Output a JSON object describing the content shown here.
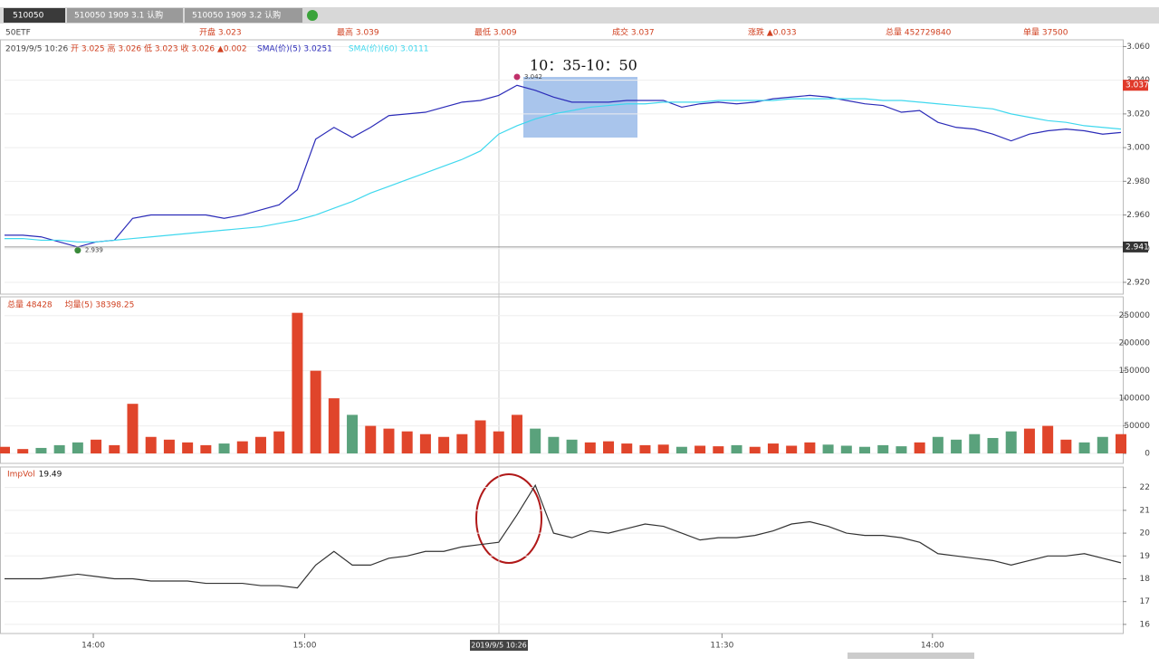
{
  "tabs": [
    "510050",
    "510050 1909 3.1 认购",
    "510050 1909 3.2 认购"
  ],
  "quote_bar": {
    "symbol": "50ETF",
    "open": "开盘 3.023",
    "high": "最高 3.039",
    "low": "最低 3.009",
    "last": "成交 3.037",
    "change": "涨跌 ▲0.033",
    "total": "总量 452729840",
    "lot": "单量 37500"
  },
  "chart_data": [
    {
      "type": "line",
      "subtitle": "2019/9/5 10:26",
      "ohlc_label": "开 3.025 高 3.026 低 3.023 收 3.026 ▲0.002",
      "annotation": "10：35-10：50",
      "high_marker": 3.042,
      "low_marker": 2.939,
      "last_price": 3.037,
      "cursor_price": 2.941,
      "ylim": [
        2.913,
        3.064
      ],
      "yticks": [
        {
          "value": 2.92,
          "label": "2.920"
        },
        {
          "value": 2.94,
          "label": "2.940"
        },
        {
          "value": 2.96,
          "label": "2.960"
        },
        {
          "value": 2.98,
          "label": "2.980"
        },
        {
          "value": 3.0,
          "label": "3.000"
        },
        {
          "value": 3.02,
          "label": "3.020"
        },
        {
          "value": 3.04,
          "label": "3.040"
        },
        {
          "value": 3.06,
          "label": "3.060"
        }
      ],
      "series": [
        {
          "name": "SMA(价)(5)",
          "current": 3.0251,
          "color": "#2b2bb8",
          "values": [
            2.948,
            2.948,
            2.947,
            2.944,
            2.941,
            2.944,
            2.945,
            2.958,
            2.96,
            2.96,
            2.96,
            2.96,
            2.958,
            2.96,
            2.963,
            2.966,
            2.975,
            3.005,
            3.012,
            3.006,
            3.012,
            3.019,
            3.02,
            3.021,
            3.024,
            3.027,
            3.028,
            3.031,
            3.037,
            3.034,
            3.03,
            3.027,
            3.027,
            3.027,
            3.028,
            3.028,
            3.028,
            3.024,
            3.026,
            3.027,
            3.026,
            3.027,
            3.029,
            3.03,
            3.031,
            3.03,
            3.028,
            3.026,
            3.025,
            3.021,
            3.022,
            3.015,
            3.012,
            3.011,
            3.008,
            3.004,
            3.008,
            3.01,
            3.011,
            3.01,
            3.008,
            3.009
          ]
        },
        {
          "name": "SMA(价)(60)",
          "current": 3.0111,
          "color": "#3fd8ee",
          "values": [
            2.946,
            2.946,
            2.945,
            2.945,
            2.944,
            2.944,
            2.945,
            2.946,
            2.947,
            2.948,
            2.949,
            2.95,
            2.951,
            2.952,
            2.953,
            2.955,
            2.957,
            2.96,
            2.964,
            2.968,
            2.973,
            2.977,
            2.981,
            2.985,
            2.989,
            2.993,
            2.998,
            3.008,
            3.013,
            3.017,
            3.02,
            3.022,
            3.024,
            3.025,
            3.026,
            3.026,
            3.027,
            3.027,
            3.027,
            3.028,
            3.028,
            3.028,
            3.028,
            3.029,
            3.029,
            3.029,
            3.029,
            3.029,
            3.028,
            3.028,
            3.027,
            3.026,
            3.025,
            3.024,
            3.023,
            3.02,
            3.018,
            3.016,
            3.015,
            3.013,
            3.012,
            3.011
          ]
        }
      ]
    },
    {
      "type": "bar",
      "total_label": "总量",
      "total": 48428,
      "avg_label": "均量(5)",
      "avg": 38398.25,
      "up_color": "#e0452b",
      "down_color": "#5aa27c",
      "ylim": [
        -18000,
        284000
      ],
      "yticks": [
        0,
        50000,
        100000,
        150000,
        200000,
        250000
      ],
      "values": [
        12000,
        8000,
        10000,
        15000,
        20000,
        25000,
        15000,
        90000,
        30000,
        25000,
        20000,
        15000,
        18000,
        22000,
        30000,
        40000,
        255000,
        150000,
        100000,
        70000,
        50000,
        45000,
        40000,
        35000,
        30000,
        35000,
        60000,
        40000,
        70000,
        45000,
        30000,
        25000,
        20000,
        22000,
        18000,
        15000,
        16000,
        12000,
        14000,
        13000,
        15000,
        12000,
        18000,
        14000,
        20000,
        16000,
        14000,
        12000,
        15000,
        13000,
        20000,
        30000,
        25000,
        35000,
        28000,
        40000,
        45000,
        50000,
        25000,
        20000,
        30000,
        35000
      ]
    },
    {
      "type": "line",
      "title": "ImpVol",
      "current": 19.49,
      "color": "#333333",
      "ylim": [
        15.6,
        22.9
      ],
      "yticks": [
        16,
        17,
        18,
        19,
        20,
        21,
        22
      ],
      "xlim": [
        0,
        61
      ],
      "cursor_label": "2019/9/5 10:26",
      "xticks": [
        {
          "value": 4.85,
          "label": "14:00"
        },
        {
          "value": 16.4,
          "label": "15:00"
        },
        {
          "value": 39.2,
          "label": "11:30"
        },
        {
          "value": 50.7,
          "label": "14:00"
        }
      ],
      "values": [
        18.0,
        18.0,
        18.0,
        18.1,
        18.2,
        18.1,
        18.0,
        18.0,
        17.9,
        17.9,
        17.9,
        17.8,
        17.8,
        17.8,
        17.7,
        17.7,
        17.6,
        18.6,
        19.2,
        18.6,
        18.6,
        18.9,
        19.0,
        19.2,
        19.2,
        19.4,
        19.5,
        19.6,
        20.8,
        22.1,
        20.0,
        19.8,
        20.1,
        20.0,
        20.2,
        20.4,
        20.3,
        20.0,
        19.7,
        19.8,
        19.8,
        19.9,
        20.1,
        20.4,
        20.5,
        20.3,
        20.0,
        19.9,
        19.9,
        19.8,
        19.6,
        19.1,
        19.0,
        18.9,
        18.8,
        18.6,
        18.8,
        19.0,
        19.0,
        19.1,
        18.9,
        18.7
      ]
    }
  ]
}
